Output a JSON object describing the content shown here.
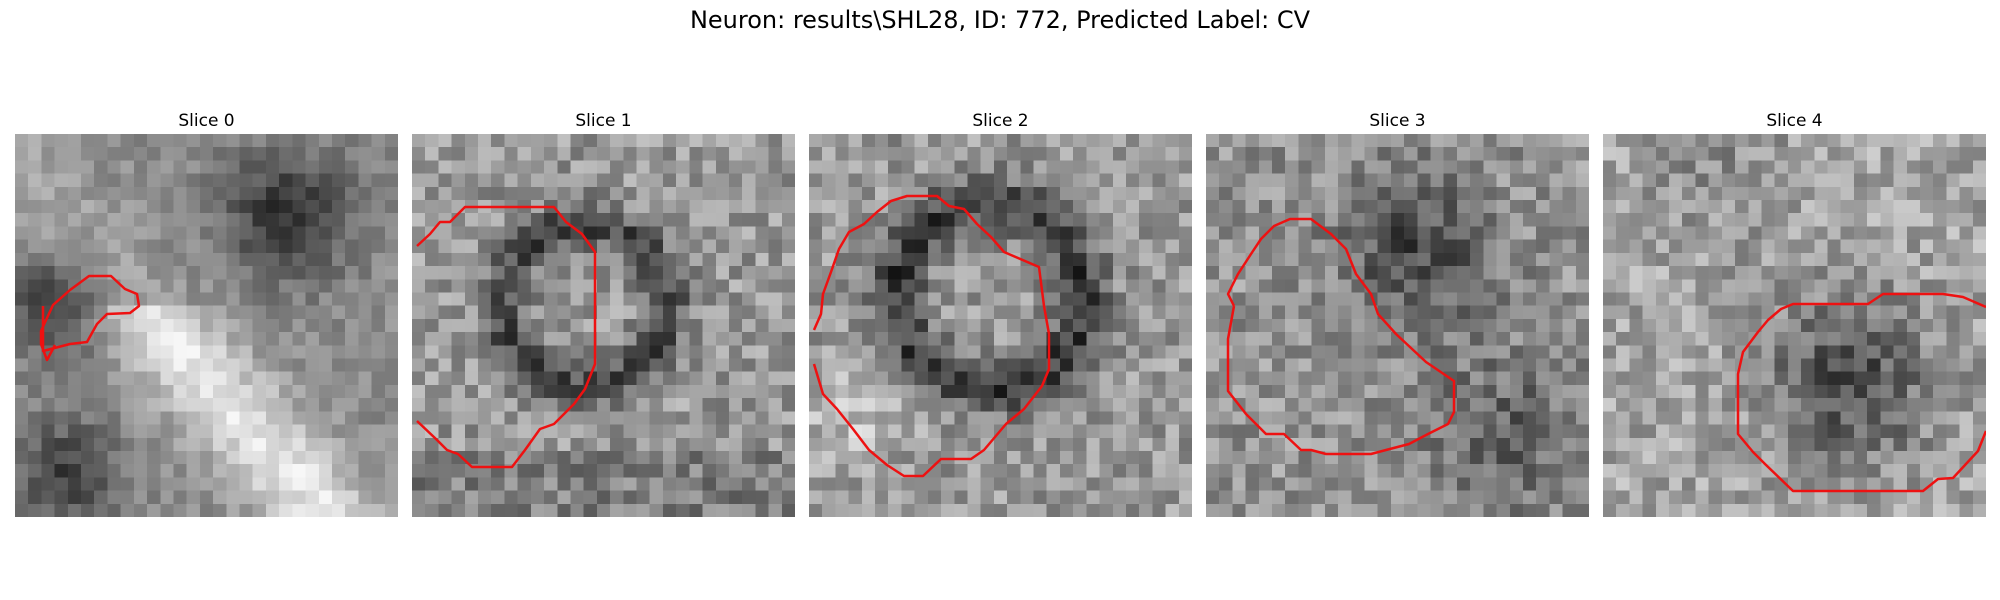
{
  "figure": {
    "suptitle": "Neuron: results\\SHL28, ID: 772, Predicted Label: CV"
  },
  "contour_color": "#ee1111",
  "panels": [
    {
      "title": "Slice 0"
    },
    {
      "title": "Slice 1"
    },
    {
      "title": "Slice 2"
    },
    {
      "title": "Slice 3"
    },
    {
      "title": "Slice 4"
    }
  ]
}
